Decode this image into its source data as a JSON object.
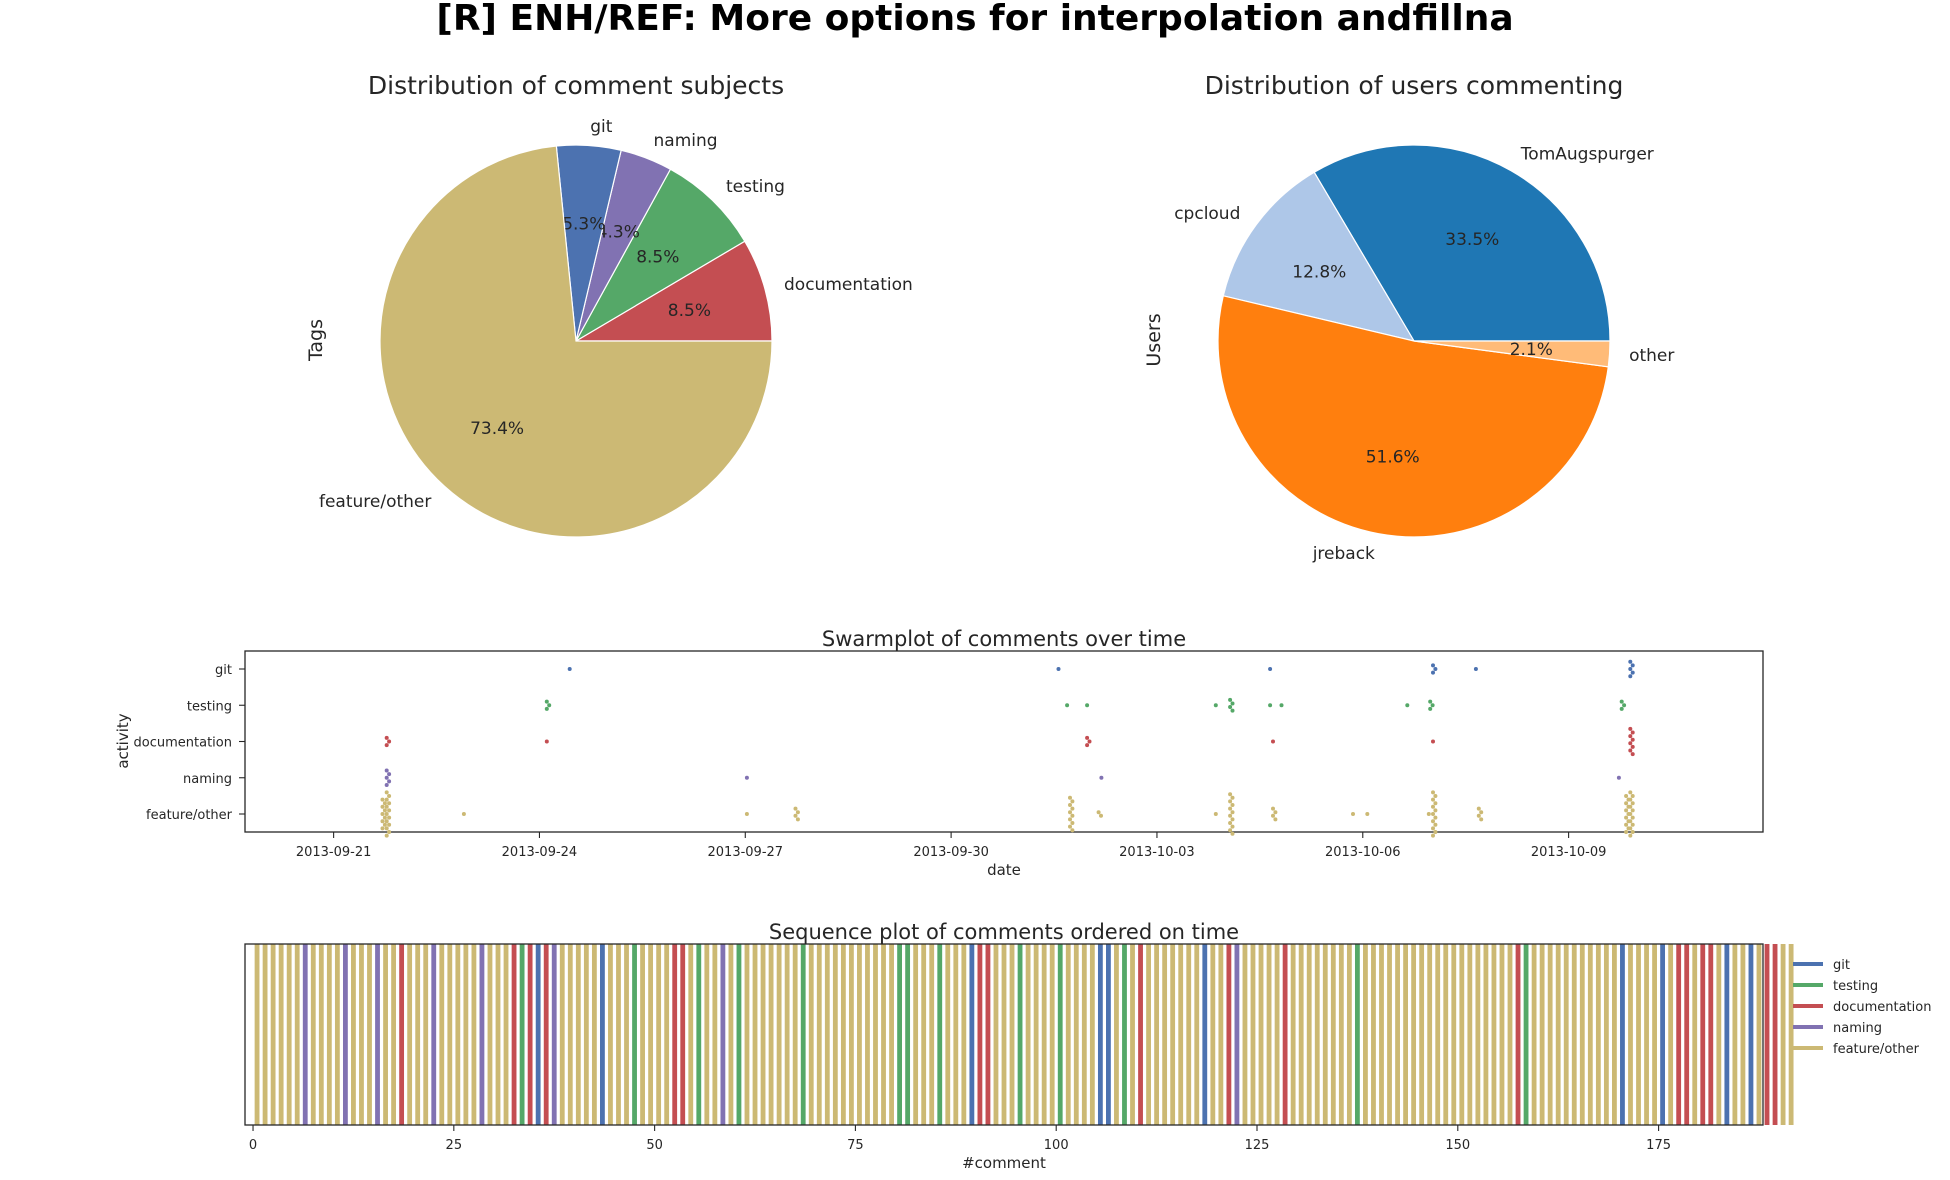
{
  "figure_title": "[R] ENH/REF: More options for interpolation andfillna",
  "chart_data": [
    {
      "type": "pie",
      "title": "Distribution of comment subjects",
      "ylabel": "Tags",
      "slices": [
        {
          "label": "documentation",
          "pct": "8.5%",
          "value": 8.5,
          "color": "#c44e52"
        },
        {
          "label": "testing",
          "pct": "8.5%",
          "value": 8.5,
          "color": "#55a868"
        },
        {
          "label": "naming",
          "pct": "4.3%",
          "value": 4.3,
          "color": "#8172b2"
        },
        {
          "label": "git",
          "pct": "5.3%",
          "value": 5.3,
          "color": "#4c72b0"
        },
        {
          "label": "feature/other",
          "pct": "73.4%",
          "value": 73.4,
          "color": "#ccb974"
        }
      ]
    },
    {
      "type": "pie",
      "title": "Distribution of users commenting",
      "ylabel": "Users",
      "slices": [
        {
          "label": "TomAugspurger",
          "pct": "33.5%",
          "value": 33.5,
          "color": "#1f77b4"
        },
        {
          "label": "cpcloud",
          "pct": "12.8%",
          "value": 12.8,
          "color": "#aec7e8"
        },
        {
          "label": "jreback",
          "pct": "51.6%",
          "value": 51.6,
          "color": "#ff7f0e"
        },
        {
          "label": "other",
          "pct": "2.1%",
          "value": 2.1,
          "color": "#ffbb78"
        }
      ]
    },
    {
      "type": "scatter",
      "title": "Swarmplot of comments over time",
      "xlabel": "date",
      "ylabel": "activity",
      "categories": [
        "git",
        "testing",
        "documentation",
        "naming",
        "feature/other"
      ],
      "colors": {
        "git": "#4c72b0",
        "testing": "#55a868",
        "documentation": "#c44e52",
        "naming": "#8172b2",
        "feature/other": "#ccb974"
      },
      "xticks": [
        "2013-09-21",
        "2013-09-24",
        "2013-09-27",
        "2013-09-30",
        "2013-10-03",
        "2013-10-06",
        "2013-10-09"
      ],
      "xlim": [
        "2013-09-19T17:00",
        "2013-10-11T20:00"
      ],
      "points": {
        "git": [
          [
            "2013-09-24T11:00",
            1
          ],
          [
            "2013-10-01T14:00",
            1
          ],
          [
            "2013-10-04T16:00",
            1
          ],
          [
            "2013-10-07T01:00",
            3
          ],
          [
            "2013-10-07T16:00",
            1
          ],
          [
            "2013-10-09T22:00",
            5
          ]
        ],
        "testing": [
          [
            "2013-09-24T03:00",
            3
          ],
          [
            "2013-10-01T17:00",
            1
          ],
          [
            "2013-10-02T00:00",
            1
          ],
          [
            "2013-10-03T21:00",
            1
          ],
          [
            "2013-10-04T02:00",
            4
          ],
          [
            "2013-10-04T16:00",
            1
          ],
          [
            "2013-10-04T20:00",
            1
          ],
          [
            "2013-10-06T16:00",
            1
          ],
          [
            "2013-10-07T00:00",
            3
          ],
          [
            "2013-10-09T19:00",
            3
          ]
        ],
        "documentation": [
          [
            "2013-09-21T19:00",
            3
          ],
          [
            "2013-09-24T03:00",
            1
          ],
          [
            "2013-10-02T00:00",
            3
          ],
          [
            "2013-10-04T17:00",
            1
          ],
          [
            "2013-10-07T01:00",
            1
          ],
          [
            "2013-10-09T22:00",
            8
          ]
        ],
        "naming": [
          [
            "2013-09-21T19:00",
            5
          ],
          [
            "2013-09-27T01:00",
            1
          ],
          [
            "2013-10-02T05:00",
            1
          ],
          [
            "2013-10-09T18:00",
            1
          ]
        ],
        "feature/other": [
          [
            "2013-09-21T19:00",
            22
          ],
          [
            "2013-09-22T22:00",
            1
          ],
          [
            "2013-09-27T01:00",
            1
          ],
          [
            "2013-09-27T18:00",
            4
          ],
          [
            "2013-10-01T18:00",
            10
          ],
          [
            "2013-10-02T04:00",
            2
          ],
          [
            "2013-10-03T21:00",
            1
          ],
          [
            "2013-10-04T02:00",
            12
          ],
          [
            "2013-10-04T17:00",
            4
          ],
          [
            "2013-10-05T21:00",
            1
          ],
          [
            "2013-10-06T02:00",
            1
          ],
          [
            "2013-10-07T01:00",
            14
          ],
          [
            "2013-10-07T17:00",
            4
          ],
          [
            "2013-10-09T22:00",
            24
          ]
        ]
      }
    },
    {
      "type": "bar",
      "title": "Sequence plot of comments ordered on time",
      "xlabel": "#comment",
      "xticks": [
        0,
        25,
        50,
        75,
        100,
        125,
        150,
        175
      ],
      "xlim": [
        -1,
        188
      ],
      "legend_position": "right",
      "legend": [
        {
          "label": "git",
          "color": "#4c72b0"
        },
        {
          "label": "testing",
          "color": "#55a868"
        },
        {
          "label": "documentation",
          "color": "#c44e52"
        },
        {
          "label": "naming",
          "color": "#8172b2"
        },
        {
          "label": "feature/other",
          "color": "#ccb974"
        }
      ],
      "sequence": [
        "feature/other",
        "feature/other",
        "feature/other",
        "feature/other",
        "feature/other",
        "feature/other",
        "naming",
        "feature/other",
        "feature/other",
        "feature/other",
        "feature/other",
        "naming",
        "feature/other",
        "feature/other",
        "feature/other",
        "naming",
        "feature/other",
        "feature/other",
        "documentation",
        "feature/other",
        "feature/other",
        "feature/other",
        "naming",
        "feature/other",
        "feature/other",
        "feature/other",
        "feature/other",
        "feature/other",
        "naming",
        "feature/other",
        "feature/other",
        "feature/other",
        "documentation",
        "testing",
        "documentation",
        "git",
        "documentation",
        "naming",
        "feature/other",
        "feature/other",
        "feature/other",
        "feature/other",
        "feature/other",
        "git",
        "feature/other",
        "feature/other",
        "feature/other",
        "testing",
        "feature/other",
        "feature/other",
        "feature/other",
        "feature/other",
        "documentation",
        "documentation",
        "feature/other",
        "testing",
        "feature/other",
        "feature/other",
        "naming",
        "feature/other",
        "testing",
        "feature/other",
        "feature/other",
        "feature/other",
        "feature/other",
        "feature/other",
        "feature/other",
        "feature/other",
        "testing",
        "feature/other",
        "feature/other",
        "feature/other",
        "feature/other",
        "feature/other",
        "feature/other",
        "feature/other",
        "feature/other",
        "feature/other",
        "feature/other",
        "feature/other",
        "testing",
        "testing",
        "feature/other",
        "feature/other",
        "feature/other",
        "testing",
        "feature/other",
        "feature/other",
        "feature/other",
        "git",
        "documentation",
        "documentation",
        "feature/other",
        "feature/other",
        "feature/other",
        "testing",
        "feature/other",
        "feature/other",
        "feature/other",
        "feature/other",
        "testing",
        "feature/other",
        "feature/other",
        "feature/other",
        "feature/other",
        "git",
        "git",
        "feature/other",
        "testing",
        "feature/other",
        "documentation",
        "feature/other",
        "feature/other",
        "feature/other",
        "feature/other",
        "feature/other",
        "feature/other",
        "feature/other",
        "git",
        "feature/other",
        "feature/other",
        "documentation",
        "naming",
        "feature/other",
        "feature/other",
        "feature/other",
        "feature/other",
        "feature/other",
        "documentation",
        "feature/other",
        "feature/other",
        "feature/other",
        "feature/other",
        "feature/other",
        "feature/other",
        "feature/other",
        "feature/other",
        "testing",
        "feature/other",
        "feature/other",
        "feature/other",
        "feature/other",
        "feature/other",
        "feature/other",
        "feature/other",
        "feature/other",
        "feature/other",
        "feature/other",
        "feature/other",
        "feature/other",
        "feature/other",
        "feature/other",
        "feature/other",
        "feature/other",
        "feature/other",
        "feature/other",
        "feature/other",
        "documentation",
        "testing",
        "feature/other",
        "feature/other",
        "feature/other",
        "feature/other",
        "feature/other",
        "feature/other",
        "feature/other",
        "feature/other",
        "feature/other",
        "feature/other",
        "feature/other",
        "git",
        "feature/other",
        "feature/other",
        "feature/other",
        "feature/other",
        "git",
        "feature/other",
        "documentation",
        "documentation",
        "feature/other",
        "documentation",
        "documentation",
        "feature/other",
        "git",
        "feature/other",
        "feature/other",
        "git",
        "feature/other",
        "documentation",
        "documentation",
        "feature/other",
        "feature/other"
      ]
    }
  ]
}
